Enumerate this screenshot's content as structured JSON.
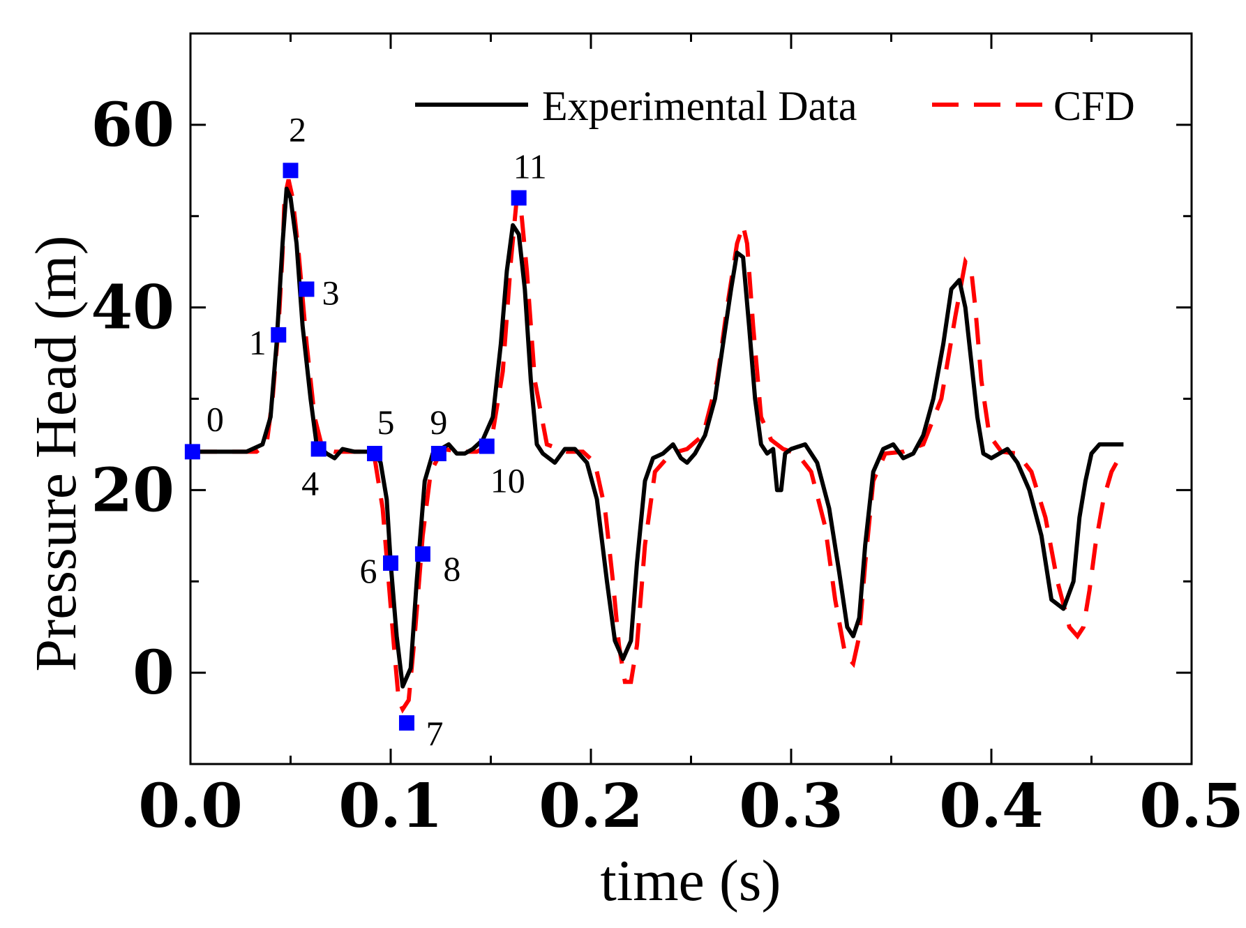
{
  "chart_data": {
    "type": "line",
    "title": "",
    "xlabel": "time (s)",
    "ylabel": "Pressure Head (m)",
    "xlim": [
      0.0,
      0.5
    ],
    "ylim": [
      -10,
      70
    ],
    "x_ticks": [
      0.0,
      0.1,
      0.2,
      0.3,
      0.4,
      0.5
    ],
    "x_tick_labels": [
      "0.0",
      "0.1",
      "0.2",
      "0.3",
      "0.4",
      "0.5"
    ],
    "y_ticks": [
      0,
      20,
      40,
      60
    ],
    "y_tick_labels": [
      "0",
      "20",
      "40",
      "60"
    ],
    "grid": false,
    "legend": {
      "placement": "top-right"
    },
    "series": [
      {
        "name": "Experimental Data",
        "color": "#000000",
        "style": "solid",
        "x": [
          0.0,
          0.028,
          0.036,
          0.04,
          0.043,
          0.046,
          0.048,
          0.05,
          0.053,
          0.056,
          0.06,
          0.063,
          0.068,
          0.072,
          0.076,
          0.082,
          0.088,
          0.092,
          0.095,
          0.098,
          0.1,
          0.103,
          0.106,
          0.11,
          0.113,
          0.117,
          0.121,
          0.125,
          0.129,
          0.133,
          0.137,
          0.141,
          0.146,
          0.151,
          0.155,
          0.158,
          0.161,
          0.164,
          0.167,
          0.17,
          0.173,
          0.176,
          0.182,
          0.187,
          0.192,
          0.198,
          0.203,
          0.208,
          0.212,
          0.216,
          0.22,
          0.223,
          0.227,
          0.231,
          0.236,
          0.241,
          0.245,
          0.248,
          0.252,
          0.257,
          0.262,
          0.266,
          0.27,
          0.273,
          0.276,
          0.279,
          0.282,
          0.285,
          0.288,
          0.291,
          0.293,
          0.295,
          0.297,
          0.3,
          0.307,
          0.313,
          0.319,
          0.324,
          0.328,
          0.331,
          0.334,
          0.337,
          0.341,
          0.346,
          0.351,
          0.356,
          0.361,
          0.366,
          0.371,
          0.376,
          0.38,
          0.384,
          0.387,
          0.39,
          0.393,
          0.396,
          0.4,
          0.404,
          0.408,
          0.413,
          0.419,
          0.425,
          0.43,
          0.436,
          0.441,
          0.444,
          0.447,
          0.45,
          0.454,
          0.458,
          0.462,
          0.466
        ],
        "values": [
          24.2,
          24.2,
          25.0,
          28.0,
          36.0,
          47.0,
          53.0,
          52.0,
          47.0,
          38.0,
          30.0,
          25.0,
          24.0,
          23.5,
          24.5,
          24.2,
          24.2,
          24.2,
          23.0,
          19.0,
          12.0,
          4.0,
          -1.5,
          0.5,
          10.0,
          21.0,
          24.0,
          24.5,
          25.0,
          24.0,
          24.0,
          24.5,
          25.5,
          28.0,
          36.0,
          44.0,
          49.0,
          48.0,
          42.0,
          32.0,
          25.0,
          24.0,
          23.0,
          24.5,
          24.5,
          23.0,
          19.0,
          10.0,
          3.5,
          1.5,
          3.5,
          12.0,
          21.0,
          23.5,
          24.0,
          25.0,
          23.5,
          23.0,
          24.0,
          26.0,
          30.0,
          36.0,
          42.0,
          46.0,
          45.5,
          38.0,
          30.0,
          25.0,
          24.0,
          24.5,
          20.0,
          20.0,
          24.0,
          24.5,
          25.0,
          23.0,
          18.0,
          11.0,
          5.0,
          4.0,
          6.0,
          14.0,
          22.0,
          24.5,
          25.0,
          23.5,
          24.0,
          26.0,
          30.0,
          36.0,
          42.0,
          43.0,
          40.0,
          34.0,
          28.0,
          24.0,
          23.5,
          24.0,
          24.5,
          23.0,
          20.0,
          15.0,
          8.0,
          7.0,
          10.0,
          17.0,
          21.0,
          24.0,
          25.0,
          25.0,
          25.0,
          25.0
        ]
      },
      {
        "name": "CFD",
        "color": "#ff0000",
        "style": "dashed",
        "x": [
          0.0,
          0.033,
          0.038,
          0.041,
          0.044,
          0.046,
          0.047,
          0.049,
          0.051,
          0.054,
          0.058,
          0.062,
          0.066,
          0.072,
          0.08,
          0.088,
          0.092,
          0.096,
          0.099,
          0.102,
          0.104,
          0.106,
          0.109,
          0.112,
          0.116,
          0.12,
          0.126,
          0.135,
          0.143,
          0.15,
          0.156,
          0.16,
          0.163,
          0.165,
          0.168,
          0.172,
          0.178,
          0.188,
          0.196,
          0.202,
          0.207,
          0.211,
          0.214,
          0.217,
          0.22,
          0.223,
          0.227,
          0.232,
          0.24,
          0.248,
          0.256,
          0.263,
          0.268,
          0.273,
          0.276,
          0.278,
          0.281,
          0.285,
          0.29,
          0.296,
          0.303,
          0.31,
          0.317,
          0.322,
          0.327,
          0.331,
          0.334,
          0.337,
          0.341,
          0.347,
          0.356,
          0.366,
          0.375,
          0.382,
          0.387,
          0.39,
          0.392,
          0.395,
          0.399,
          0.405,
          0.413,
          0.42,
          0.427,
          0.433,
          0.439,
          0.443,
          0.446,
          0.449,
          0.452,
          0.456,
          0.46,
          0.465
        ],
        "values": [
          24.2,
          24.2,
          25.0,
          30.0,
          38.0,
          46.0,
          52.0,
          54.0,
          52.0,
          46.0,
          36.0,
          28.0,
          24.5,
          24.2,
          24.2,
          24.2,
          23.5,
          18.0,
          10.0,
          2.0,
          -3.0,
          -4.0,
          -3.0,
          4.0,
          15.0,
          22.0,
          24.5,
          24.2,
          24.2,
          25.0,
          33.0,
          45.0,
          52.0,
          51.0,
          44.0,
          32.0,
          25.0,
          24.2,
          24.2,
          23.0,
          18.0,
          10.0,
          3.0,
          -1.0,
          -1.0,
          3.0,
          14.0,
          22.0,
          24.0,
          24.5,
          26.0,
          32.0,
          40.0,
          47.0,
          49.0,
          47.0,
          38.0,
          28.0,
          25.5,
          24.5,
          24.0,
          22.0,
          16.0,
          8.0,
          2.0,
          1.0,
          4.0,
          12.0,
          21.0,
          24.0,
          24.2,
          25.0,
          30.0,
          39.0,
          45.0,
          44.0,
          40.0,
          32.0,
          26.0,
          24.2,
          24.0,
          22.0,
          17.0,
          10.0,
          5.0,
          4.0,
          5.0,
          9.0,
          14.0,
          19.0,
          22.0,
          24.0
        ]
      }
    ],
    "markers": {
      "color": "#0000ff",
      "shape": "square",
      "points": [
        {
          "label": "0",
          "x": 0.001,
          "y": 24.2
        },
        {
          "label": "1",
          "x": 0.044,
          "y": 37.0
        },
        {
          "label": "2",
          "x": 0.05,
          "y": 55.0
        },
        {
          "label": "3",
          "x": 0.058,
          "y": 42.0
        },
        {
          "label": "4",
          "x": 0.064,
          "y": 24.5
        },
        {
          "label": "5",
          "x": 0.092,
          "y": 24.0
        },
        {
          "label": "6",
          "x": 0.1,
          "y": 12.0
        },
        {
          "label": "7",
          "x": 0.108,
          "y": -5.5
        },
        {
          "label": "8",
          "x": 0.116,
          "y": 13.0
        },
        {
          "label": "9",
          "x": 0.124,
          "y": 24.0
        },
        {
          "label": "10",
          "x": 0.148,
          "y": 24.8
        },
        {
          "label": "11",
          "x": 0.164,
          "y": 52.0
        }
      ]
    }
  }
}
